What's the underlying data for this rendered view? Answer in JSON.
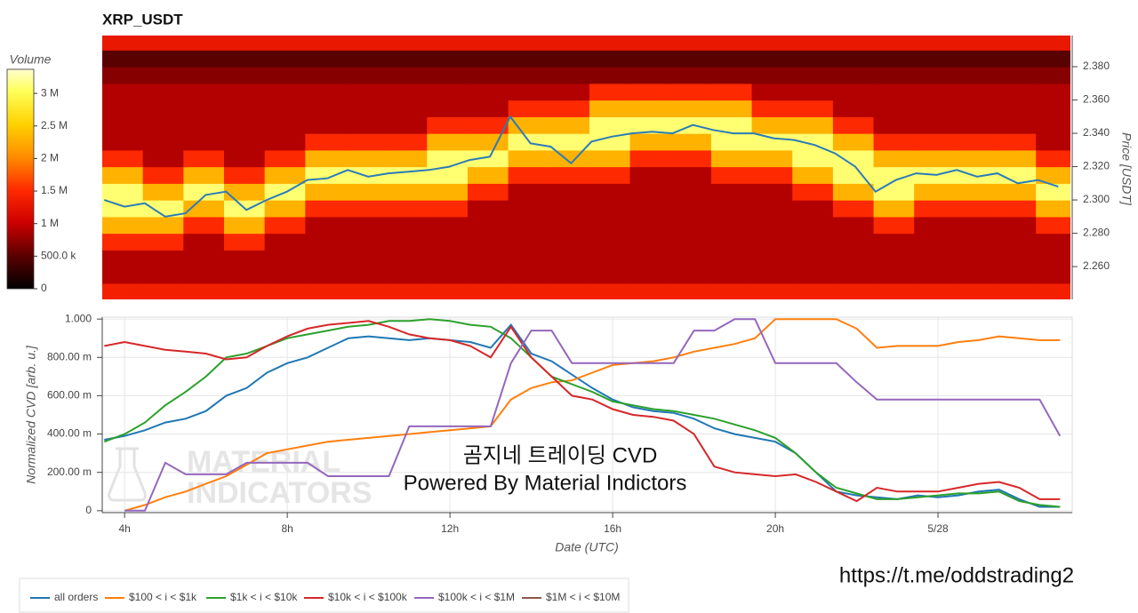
{
  "chart_data": [
    {
      "type": "heatmap",
      "title": "XRP_USDT",
      "y2label": "Price [USDT]",
      "xlim": [
        3.45,
        27.3
      ],
      "ylim": [
        2.2403,
        2.3987
      ],
      "yticks": [
        {
          "value": 2.26,
          "label": "2.260"
        },
        {
          "value": 2.28,
          "label": "2.280"
        },
        {
          "value": 2.3,
          "label": "2.300"
        },
        {
          "value": 2.32,
          "label": "2.320"
        },
        {
          "value": 2.34,
          "label": "2.340"
        },
        {
          "value": 2.36,
          "label": "2.360"
        },
        {
          "value": 2.38,
          "label": "2.380"
        }
      ],
      "colorbar": {
        "label": "Volume",
        "zlim": [
          0,
          3370000
        ],
        "ticks": [
          0,
          {
            "value": 500000,
            "label": "500.0 k"
          },
          {
            "value": 1000000,
            "label": "1 M"
          },
          {
            "value": 1500000,
            "label": "1.5 M"
          },
          {
            "value": 2000000,
            "label": "2 M"
          },
          {
            "value": 2500000,
            "label": "2.5 M"
          },
          {
            "value": 3000000,
            "label": "3 M"
          }
        ]
      },
      "x": [
        3.95,
        4.95,
        5.95,
        6.95,
        7.95,
        8.95,
        9.95,
        10.95,
        11.95,
        12.95,
        13.95,
        14.95,
        15.95,
        16.95,
        17.95,
        18.95,
        19.95,
        20.95,
        21.95,
        22.95,
        23.95,
        24.95,
        25.95,
        26.95
      ],
      "y": [
        2.245,
        2.255,
        2.265,
        2.275,
        2.285,
        2.295,
        2.305,
        2.315,
        2.325,
        2.335,
        2.345,
        2.355,
        2.365,
        2.375,
        2.385,
        2.395
      ],
      "z": [
        [
          1400000,
          1400000,
          1400000,
          1400000,
          1400000,
          1400000,
          1400000,
          1400000,
          1400000,
          1400000,
          1400000,
          1400000,
          1400000,
          1400000,
          1400000,
          1400000,
          1400000,
          1400000,
          1400000,
          1400000,
          1400000,
          1400000,
          1400000,
          1400000
        ],
        [
          900000,
          900000,
          900000,
          900000,
          900000,
          900000,
          900000,
          900000,
          900000,
          900000,
          900000,
          900000,
          900000,
          900000,
          900000,
          900000,
          900000,
          900000,
          900000,
          900000,
          900000,
          900000,
          900000,
          900000
        ],
        [
          900000,
          900000,
          900000,
          900000,
          900000,
          900000,
          900000,
          900000,
          900000,
          900000,
          900000,
          900000,
          900000,
          900000,
          900000,
          900000,
          900000,
          900000,
          900000,
          900000,
          900000,
          900000,
          900000,
          900000
        ],
        [
          1500000,
          1500000,
          900000,
          1500000,
          900000,
          900000,
          900000,
          900000,
          900000,
          900000,
          900000,
          900000,
          900000,
          900000,
          900000,
          900000,
          900000,
          900000,
          900000,
          900000,
          900000,
          900000,
          900000,
          900000
        ],
        [
          2300000,
          2300000,
          1500000,
          2300000,
          1500000,
          900000,
          900000,
          900000,
          900000,
          900000,
          900000,
          900000,
          900000,
          900000,
          900000,
          900000,
          900000,
          900000,
          900000,
          1500000,
          900000,
          900000,
          900000,
          1500000
        ],
        [
          3100000,
          3100000,
          2300000,
          3100000,
          2300000,
          1500000,
          1500000,
          1500000,
          1500000,
          900000,
          900000,
          900000,
          900000,
          900000,
          900000,
          900000,
          900000,
          900000,
          1500000,
          2300000,
          1500000,
          1500000,
          1500000,
          2300000
        ],
        [
          3100000,
          2300000,
          3100000,
          2300000,
          3100000,
          2300000,
          2300000,
          2300000,
          2300000,
          1500000,
          900000,
          900000,
          900000,
          900000,
          900000,
          900000,
          900000,
          1500000,
          2300000,
          3100000,
          2300000,
          2300000,
          2300000,
          3100000
        ],
        [
          2300000,
          1500000,
          2300000,
          1500000,
          2300000,
          3100000,
          3100000,
          3100000,
          3100000,
          2300000,
          1500000,
          1500000,
          1500000,
          900000,
          900000,
          1500000,
          1500000,
          2300000,
          3100000,
          3100000,
          3100000,
          3100000,
          3100000,
          2300000
        ],
        [
          1500000,
          900000,
          1500000,
          900000,
          1500000,
          2300000,
          2300000,
          2300000,
          3100000,
          3100000,
          2300000,
          2300000,
          2300000,
          1500000,
          1500000,
          2300000,
          2300000,
          3100000,
          3100000,
          2300000,
          2300000,
          2300000,
          2300000,
          1500000
        ],
        [
          900000,
          900000,
          900000,
          900000,
          900000,
          1500000,
          1500000,
          1500000,
          2300000,
          2300000,
          3100000,
          3100000,
          3100000,
          2300000,
          2300000,
          3100000,
          3100000,
          3100000,
          2300000,
          1500000,
          1500000,
          1500000,
          1500000,
          900000
        ],
        [
          900000,
          900000,
          900000,
          900000,
          900000,
          900000,
          900000,
          900000,
          1500000,
          1500000,
          2300000,
          2300000,
          3100000,
          3100000,
          3100000,
          3100000,
          2300000,
          2300000,
          1500000,
          900000,
          900000,
          900000,
          900000,
          900000
        ],
        [
          900000,
          900000,
          900000,
          900000,
          900000,
          900000,
          900000,
          900000,
          900000,
          900000,
          1500000,
          1500000,
          2300000,
          2300000,
          2300000,
          2300000,
          1500000,
          1500000,
          900000,
          900000,
          900000,
          900000,
          900000,
          900000
        ],
        [
          900000,
          900000,
          900000,
          900000,
          900000,
          900000,
          900000,
          900000,
          900000,
          900000,
          900000,
          900000,
          1500000,
          1500000,
          1500000,
          1500000,
          900000,
          900000,
          900000,
          900000,
          900000,
          900000,
          900000,
          900000
        ],
        [
          700000,
          700000,
          700000,
          700000,
          700000,
          700000,
          700000,
          700000,
          700000,
          700000,
          700000,
          700000,
          700000,
          700000,
          700000,
          700000,
          700000,
          700000,
          700000,
          700000,
          700000,
          700000,
          700000,
          700000
        ],
        [
          500000,
          500000,
          500000,
          500000,
          500000,
          500000,
          500000,
          500000,
          500000,
          500000,
          500000,
          500000,
          500000,
          500000,
          500000,
          500000,
          500000,
          500000,
          500000,
          500000,
          500000,
          500000,
          500000,
          500000
        ],
        [
          1300000,
          1300000,
          1300000,
          1300000,
          1300000,
          1300000,
          1300000,
          1300000,
          1300000,
          1300000,
          1300000,
          1300000,
          1300000,
          1300000,
          1300000,
          1300000,
          1300000,
          1300000,
          1300000,
          1300000,
          1300000,
          1300000,
          1300000,
          1300000
        ]
      ],
      "price": {
        "color": "#2b7bb9",
        "x": [
          3.5,
          4,
          4.5,
          5,
          5.5,
          6,
          6.5,
          7,
          7.5,
          8,
          8.5,
          9,
          9.5,
          10,
          10.5,
          11,
          11.5,
          12,
          12.5,
          13,
          13.5,
          14,
          14.5,
          15,
          15.5,
          16,
          16.5,
          17,
          17.5,
          18,
          18.5,
          19,
          19.5,
          20,
          20.5,
          21,
          21.5,
          22,
          22.5,
          23,
          23.5,
          24,
          24.5,
          25,
          25.5,
          26,
          26.5,
          27
        ],
        "values": [
          2.3,
          2.296,
          2.298,
          2.29,
          2.292,
          2.303,
          2.305,
          2.294,
          2.3,
          2.305,
          2.312,
          2.313,
          2.318,
          2.314,
          2.316,
          2.317,
          2.318,
          2.32,
          2.324,
          2.326,
          2.35,
          2.334,
          2.332,
          2.322,
          2.335,
          2.338,
          2.34,
          2.341,
          2.34,
          2.345,
          2.342,
          2.34,
          2.34,
          2.337,
          2.336,
          2.333,
          2.328,
          2.32,
          2.305,
          2.312,
          2.316,
          2.315,
          2.318,
          2.314,
          2.316,
          2.31,
          2.312,
          2.308
        ]
      }
    },
    {
      "type": "line",
      "xlabel": "Date (UTC)",
      "ylabel": "Normalized CVD [arb. u.]",
      "grid": true,
      "xlim": [
        3.45,
        27.3
      ],
      "ylim": [
        -0.01,
        1.01
      ],
      "xticks": [
        {
          "value": 4,
          "label": "4h"
        },
        {
          "value": 8,
          "label": "8h"
        },
        {
          "value": 12,
          "label": "12h"
        },
        {
          "value": 16,
          "label": "16h"
        },
        {
          "value": 20,
          "label": "20h"
        },
        {
          "value": 24,
          "label": "5/28"
        }
      ],
      "yticks": [
        0,
        {
          "value": 0.2,
          "label": "200.00 m"
        },
        {
          "value": 0.4,
          "label": "400.00 m"
        },
        {
          "value": 0.6,
          "label": "600.00 m"
        },
        {
          "value": 0.8,
          "label": "800.00 m"
        },
        {
          "value": 1,
          "label": "1.000"
        }
      ],
      "x": [
        3.5,
        4,
        4.5,
        5,
        5.5,
        6,
        6.5,
        7,
        7.5,
        8,
        8.5,
        9,
        9.5,
        10,
        10.5,
        11,
        11.5,
        12,
        12.5,
        13,
        13.5,
        14,
        14.5,
        15,
        15.5,
        16,
        16.5,
        17,
        17.5,
        18,
        18.5,
        19,
        19.5,
        20,
        20.5,
        21,
        21.5,
        22,
        22.5,
        23,
        23.5,
        24,
        24.5,
        25,
        25.5,
        26,
        26.5,
        27
      ],
      "series": [
        {
          "name": "all orders",
          "color": "#1f77b4",
          "values": [
            0.37,
            0.39,
            0.42,
            0.46,
            0.48,
            0.52,
            0.6,
            0.64,
            0.72,
            0.77,
            0.8,
            0.85,
            0.9,
            0.91,
            0.9,
            0.89,
            0.9,
            0.89,
            0.88,
            0.85,
            0.97,
            0.82,
            0.78,
            0.71,
            0.64,
            0.58,
            0.54,
            0.52,
            0.51,
            0.48,
            0.43,
            0.4,
            0.38,
            0.36,
            0.3,
            0.2,
            0.1,
            0.08,
            0.07,
            0.06,
            0.08,
            0.07,
            0.08,
            0.1,
            0.11,
            0.06,
            0.02,
            0.02
          ]
        },
        {
          "name": "$100 < i < $1k",
          "color": "#ff7f0e",
          "values": [
            null,
            0.0,
            0.03,
            0.07,
            0.1,
            0.14,
            0.18,
            0.24,
            0.3,
            0.32,
            0.34,
            0.36,
            0.37,
            0.38,
            0.39,
            0.4,
            0.41,
            0.42,
            0.43,
            0.44,
            0.58,
            0.64,
            0.67,
            0.68,
            0.72,
            0.76,
            0.77,
            0.78,
            0.8,
            0.83,
            0.85,
            0.87,
            0.9,
            1.0,
            1.0,
            1.0,
            1.0,
            0.95,
            0.85,
            0.86,
            0.86,
            0.86,
            0.88,
            0.89,
            0.91,
            0.9,
            0.89,
            0.89
          ]
        },
        {
          "name": "$1k < i < $10k",
          "color": "#2ca02c",
          "values": [
            0.36,
            0.4,
            0.46,
            0.55,
            0.62,
            0.7,
            0.8,
            0.82,
            0.86,
            0.9,
            0.92,
            0.94,
            0.96,
            0.97,
            0.99,
            0.99,
            1.0,
            0.99,
            0.97,
            0.96,
            0.9,
            0.8,
            0.7,
            0.66,
            0.62,
            0.57,
            0.55,
            0.53,
            0.52,
            0.5,
            0.48,
            0.45,
            0.42,
            0.38,
            0.3,
            0.2,
            0.12,
            0.09,
            0.06,
            0.06,
            0.07,
            0.08,
            0.09,
            0.09,
            0.1,
            0.05,
            0.03,
            0.02
          ]
        },
        {
          "name": "$10k < i < $100k",
          "color": "#d62728",
          "values": [
            0.86,
            0.88,
            0.86,
            0.84,
            0.83,
            0.82,
            0.79,
            0.8,
            0.86,
            0.91,
            0.95,
            0.97,
            0.98,
            0.99,
            0.96,
            0.92,
            0.9,
            0.89,
            0.86,
            0.8,
            0.96,
            0.8,
            0.7,
            0.6,
            0.58,
            0.53,
            0.5,
            0.49,
            0.47,
            0.4,
            0.23,
            0.2,
            0.19,
            0.18,
            0.19,
            0.15,
            0.1,
            0.05,
            0.12,
            0.1,
            0.1,
            0.1,
            0.12,
            0.14,
            0.15,
            0.12,
            0.06,
            0.06
          ]
        },
        {
          "name": "$100k < i < $1M",
          "color": "#9467bd",
          "values": [
            null,
            0,
            0.0,
            0.25,
            0.19,
            0.19,
            0.19,
            0.25,
            0.25,
            0.25,
            0.25,
            0.18,
            0.18,
            0.18,
            0.18,
            0.44,
            0.44,
            0.44,
            0.44,
            0.44,
            0.77,
            0.94,
            0.94,
            0.77,
            0.77,
            0.77,
            0.77,
            0.77,
            0.77,
            0.94,
            0.94,
            1.0,
            1.0,
            0.77,
            0.77,
            0.77,
            0.77,
            0.67,
            0.58,
            0.58,
            0.58,
            0.58,
            0.58,
            0.58,
            0.58,
            0.58,
            0.58,
            0.39
          ]
        },
        {
          "name": "$1M < i < $10M",
          "color": "#8c564b"
        }
      ],
      "annotations": [
        "MATERIAL",
        "INDICATORS",
        "곰지네 트레이딩 CVD",
        "Powered By Material Indictors"
      ],
      "source": "https://t.me/oddstrading2"
    }
  ]
}
